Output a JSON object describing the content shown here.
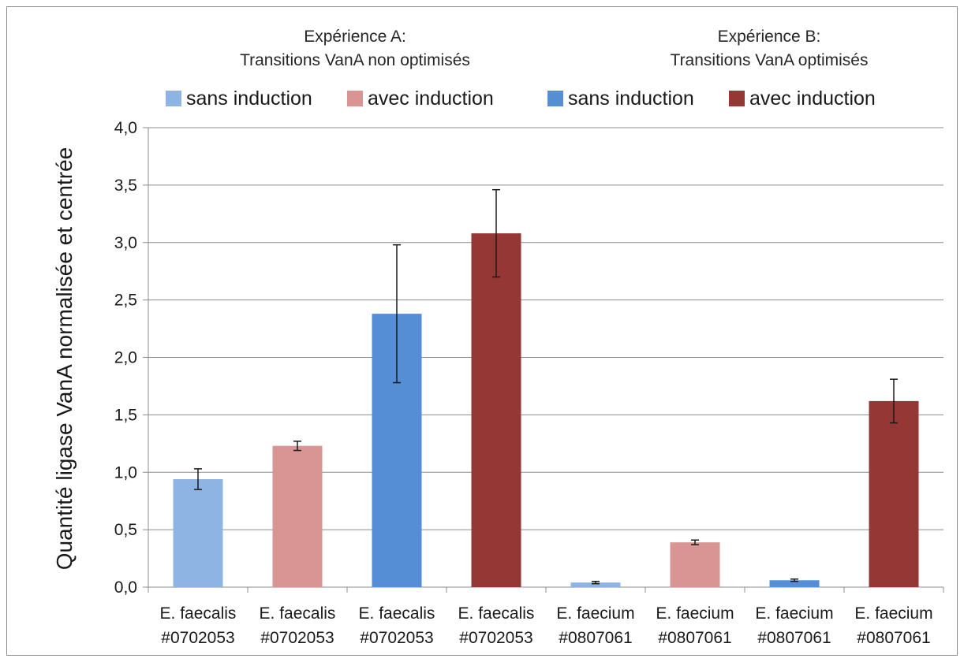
{
  "chart_data": {
    "type": "bar",
    "experiments": [
      {
        "line1": "Expérience A:",
        "line2": "Transitions VanA non optimisés"
      },
      {
        "line1": "Expérience B:",
        "line2": "Transitions VanA  optimisés"
      }
    ],
    "legend": [
      {
        "label": "sans induction",
        "color": "#8eb4e3"
      },
      {
        "label": "avec induction",
        "color": "#d99594"
      },
      {
        "label": "sans induction",
        "color": "#558ed5"
      },
      {
        "label": "avec induction",
        "color": "#953735"
      }
    ],
    "ylabel": "Quantité ligase VanA normalisée et centrée",
    "ylim": [
      0,
      4.0
    ],
    "yticks": [
      "0,0",
      "0,5",
      "1,0",
      "1,5",
      "2,0",
      "2,5",
      "3,0",
      "3,5",
      "4,0"
    ],
    "grid": true,
    "categories": [
      {
        "line1": "E. faecalis",
        "line2": "#0702053"
      },
      {
        "line1": "E. faecalis",
        "line2": "#0702053"
      },
      {
        "line1": "E. faecalis",
        "line2": "#0702053"
      },
      {
        "line1": "E. faecalis",
        "line2": "#0702053"
      },
      {
        "line1": "E. faecium",
        "line2": "#0807061"
      },
      {
        "line1": "E. faecium",
        "line2": "#0807061"
      },
      {
        "line1": "E. faecium",
        "line2": "#0807061"
      },
      {
        "line1": "E. faecium",
        "line2": "#0807061"
      }
    ],
    "values": [
      0.94,
      1.23,
      2.38,
      3.08,
      0.04,
      0.39,
      0.06,
      1.62
    ],
    "errors": [
      0.09,
      0.04,
      0.6,
      0.38,
      0.01,
      0.02,
      0.01,
      0.19
    ],
    "bar_colors": [
      "#8eb4e3",
      "#d99594",
      "#558ed5",
      "#953735",
      "#8eb4e3",
      "#d99594",
      "#558ed5",
      "#953735"
    ]
  }
}
